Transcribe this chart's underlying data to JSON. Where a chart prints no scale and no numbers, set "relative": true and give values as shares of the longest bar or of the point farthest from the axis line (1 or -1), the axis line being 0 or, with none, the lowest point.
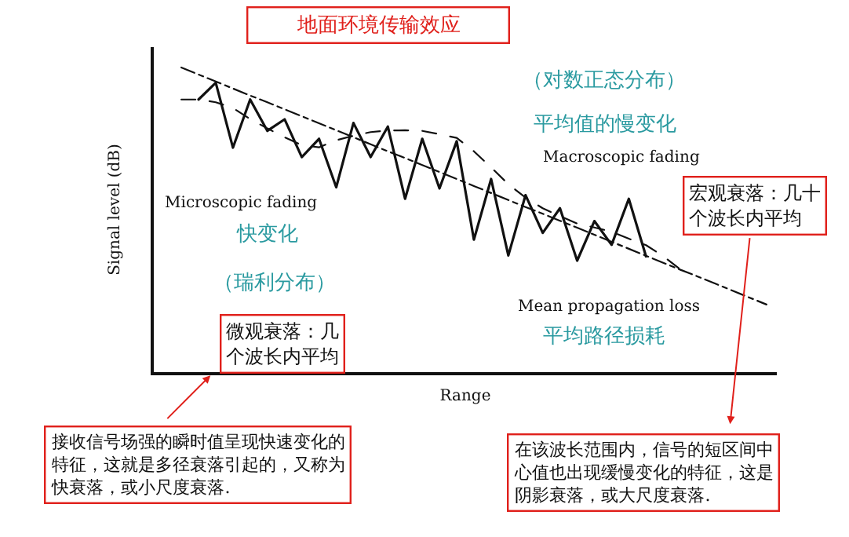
{
  "chart_data": {
    "type": "line",
    "relative": true,
    "title": "地面环境传输效应",
    "xlabel": "Range",
    "ylabel": "Signal level (dB)",
    "legend": false,
    "tick_labels": false,
    "marker": "none",
    "categories": [
      null,
      null,
      null,
      null,
      null,
      null,
      null,
      null,
      null,
      null,
      null,
      null,
      null,
      null,
      null,
      null,
      null,
      null,
      null,
      null,
      null,
      null,
      null,
      null,
      null,
      null,
      null,
      null,
      null,
      null,
      null,
      null,
      null,
      null,
      null,
      null
    ],
    "series": [
      {
        "name": "Microscopic fading",
        "color": "#111111",
        "line_style": "solid",
        "values": [
          null,
          null,
          0.895,
          0.95,
          0.737,
          0.895,
          0.792,
          0.83,
          0.706,
          0.766,
          0.607,
          0.818,
          0.706,
          0.806,
          0.569,
          0.766,
          0.603,
          0.758,
          0.435,
          0.634,
          0.383,
          0.581,
          0.457,
          0.538,
          0.366,
          0.496,
          0.418,
          0.569,
          0.38,
          null,
          null,
          null,
          null,
          null,
          null,
          null
        ]
      },
      {
        "name": "Macroscopic fading",
        "color": "#111111",
        "line_style": "dashed",
        "values": [
          null,
          0.895,
          0.895,
          0.886,
          0.867,
          0.831,
          0.8,
          0.771,
          0.745,
          0.738,
          0.761,
          0.776,
          0.788,
          0.793,
          0.794,
          0.792,
          0.781,
          0.769,
          0.725,
          0.672,
          0.617,
          0.573,
          0.538,
          0.512,
          0.488,
          0.475,
          0.461,
          0.438,
          0.417,
          0.381,
          0.337,
          null,
          null,
          null,
          null,
          null
        ]
      },
      {
        "name": "Mean propagation loss",
        "color": "#111111",
        "line_style": "dashdot",
        "values": [
          null,
          1.0,
          0.977,
          0.954,
          0.931,
          0.908,
          0.886,
          0.863,
          0.84,
          0.817,
          0.794,
          0.771,
          0.748,
          0.725,
          0.703,
          0.68,
          0.657,
          0.634,
          0.611,
          0.588,
          0.565,
          0.542,
          0.52,
          0.497,
          0.474,
          0.451,
          0.428,
          0.405,
          0.382,
          0.359,
          0.336,
          0.314,
          0.291,
          0.268,
          0.245,
          0.222
        ]
      }
    ],
    "annotations": [
      "（对数正态分布）",
      "平均值的慢变化",
      "快变化",
      "（瑞利分布）",
      "平均路径损耗",
      "微观衰落：几个波长内平均",
      "宏观衰落：几十个波长内平均",
      "接收信号场强的瞬时值呈现快速变化的特征，这就是多径衰落引起的，又称为快衰落，或小尺度衰落.",
      "在该波长范围内，信号的短区间中心值也出现缓慢变化的特征，这是阴影衰落，或大尺度衰落."
    ]
  }
}
